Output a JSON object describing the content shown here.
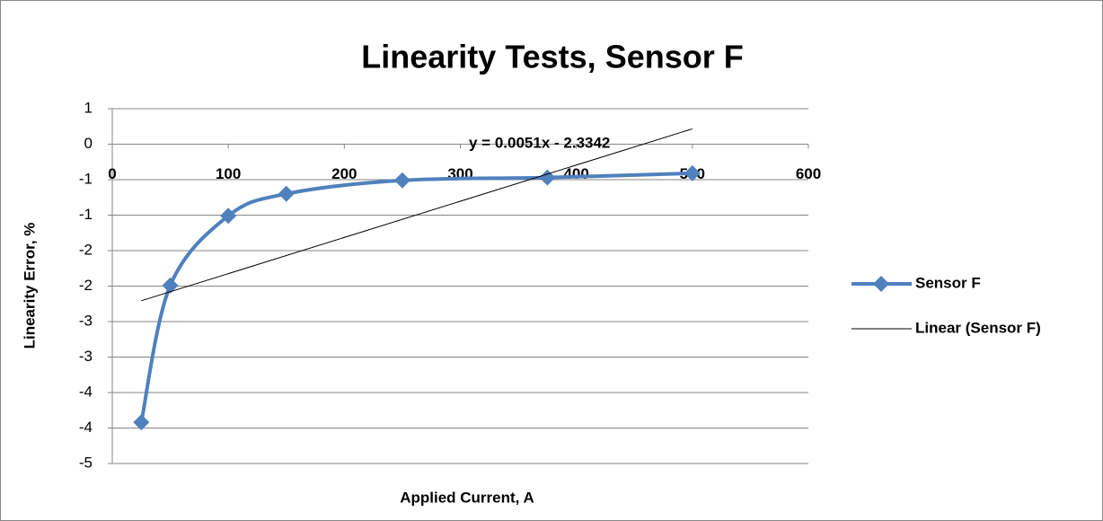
{
  "chart_data": {
    "type": "line",
    "title": "Linearity Tests, Sensor F",
    "xlabel": "Applied Current, A",
    "ylabel": "Linearity Error, %",
    "x": [
      25,
      50,
      100,
      150,
      250,
      375,
      500
    ],
    "series": [
      {
        "name": "Sensor F",
        "color": "#4f81bd",
        "values": [
          -3.92,
          -1.99,
          -1.01,
          -0.7,
          -0.51,
          -0.47,
          -0.41
        ]
      }
    ],
    "trendline": {
      "name": "Linear (Sensor F)",
      "label": "y = 0.0051x - 2.3342",
      "color": "#000000",
      "x": [
        25,
        500
      ],
      "values": [
        -2.2067,
        0.2158
      ]
    },
    "xlim": [
      0,
      600
    ],
    "xticks": [
      0,
      100,
      200,
      300,
      400,
      500,
      600
    ],
    "ylim": [
      -4.5,
      0.5
    ],
    "yticks": [
      {
        "value": 0.5,
        "label": "1"
      },
      {
        "value": 0,
        "label": "0"
      },
      {
        "value": -0.5,
        "label": "-1"
      },
      {
        "value": -1,
        "label": "-1"
      },
      {
        "value": -1.5,
        "label": "-2"
      },
      {
        "value": -2,
        "label": "-2"
      },
      {
        "value": -2.5,
        "label": "-3"
      },
      {
        "value": -3,
        "label": "-3"
      },
      {
        "value": -3.5,
        "label": "-4"
      },
      {
        "value": -4,
        "label": "-4"
      },
      {
        "value": -4.5,
        "label": "-5"
      }
    ],
    "grid": true,
    "legend": "right"
  }
}
